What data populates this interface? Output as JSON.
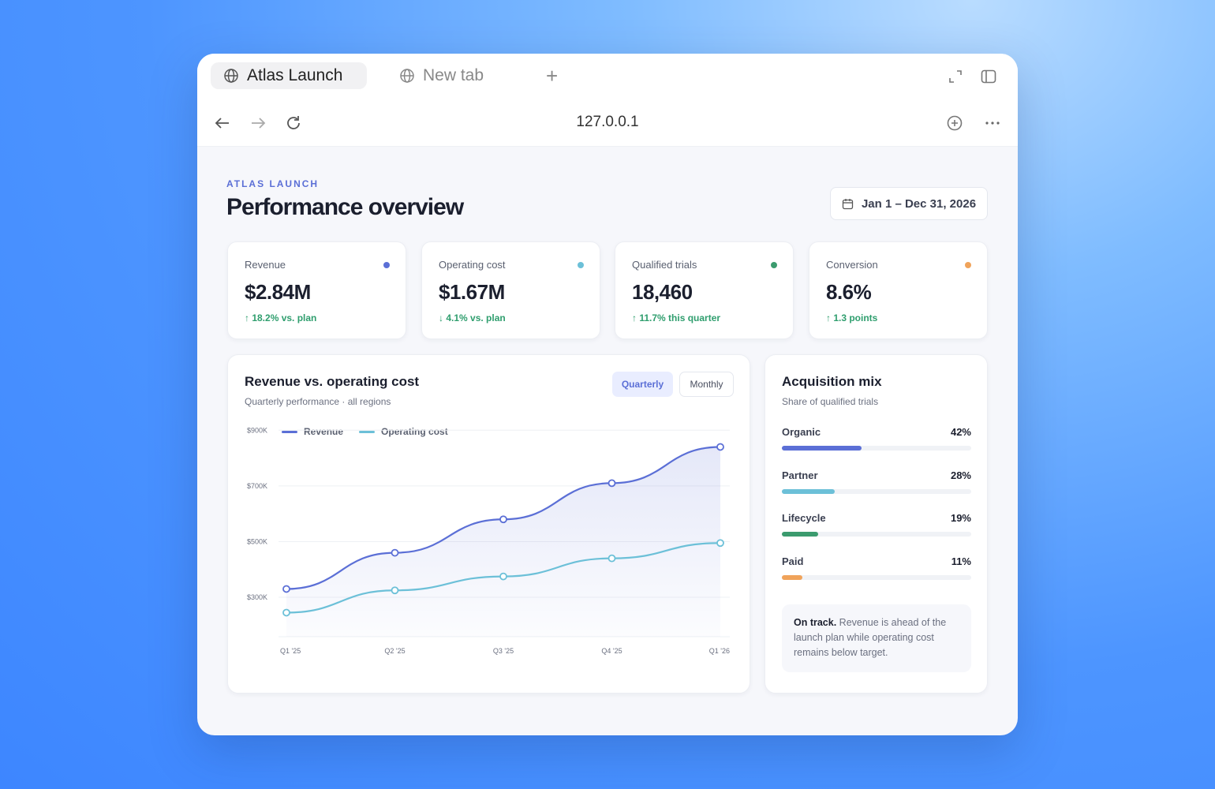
{
  "browser": {
    "tabs": [
      {
        "label": "Atlas Launch",
        "icon": "globe-icon",
        "active": true
      },
      {
        "label": "New tab",
        "icon": "globe-icon",
        "active": false
      }
    ],
    "url": "127.0.0.1"
  },
  "page": {
    "kicker": "ATLAS LAUNCH",
    "title": "Performance overview",
    "date_range": "Jan 1 – Dec 31, 2026"
  },
  "kpis": [
    {
      "label": "Revenue",
      "value": "$2.84M",
      "delta": "↑ 18.2% vs. plan",
      "color": "#5b6fd6"
    },
    {
      "label": "Operating cost",
      "value": "$1.67M",
      "delta": "↓ 4.1% vs. plan",
      "color": "#6cc0d8"
    },
    {
      "label": "Qualified trials",
      "value": "18,460",
      "delta": "↑ 11.7% this quarter",
      "color": "#3b9b6e"
    },
    {
      "label": "Conversion",
      "value": "8.6%",
      "delta": "↑ 1.3 points",
      "color": "#f0a35a"
    }
  ],
  "chart_card": {
    "title": "Revenue vs. operating cost",
    "subtitle": "Quarterly performance · all regions",
    "toggle": {
      "quarterly": "Quarterly",
      "monthly": "Monthly",
      "selected": "Quarterly"
    }
  },
  "chart_data": {
    "type": "line",
    "categories": [
      "Q1 '25",
      "Q2 '25",
      "Q3 '25",
      "Q4 '25",
      "Q1 '26"
    ],
    "series": [
      {
        "name": "Revenue",
        "color": "#5b6fd6",
        "values": [
          330,
          460,
          580,
          710,
          840
        ]
      },
      {
        "name": "Operating cost",
        "color": "#6cc0d8",
        "values": [
          245,
          325,
          375,
          440,
          495
        ]
      }
    ],
    "ytick_labels": [
      "$300K",
      "$500K",
      "$700K",
      "$900K"
    ],
    "yticks": [
      300,
      500,
      700,
      900
    ],
    "ylim": [
      150,
      1000
    ],
    "grid": true,
    "legend": "top-left"
  },
  "mix_card": {
    "title": "Acquisition mix",
    "subtitle": "Share of qualified trials",
    "items": [
      {
        "name": "Organic",
        "pct_label": "42%",
        "value": 42,
        "color": "#5b6fd6"
      },
      {
        "name": "Partner",
        "pct_label": "28%",
        "value": 28,
        "color": "#6cc0d8"
      },
      {
        "name": "Lifecycle",
        "pct_label": "19%",
        "value": 19,
        "color": "#3b9b6e"
      },
      {
        "name": "Paid",
        "pct_label": "11%",
        "value": 11,
        "color": "#f0a35a"
      }
    ],
    "note_lead": "On track.",
    "note_text": " Revenue is ahead of the launch plan while operating cost remains below target."
  }
}
